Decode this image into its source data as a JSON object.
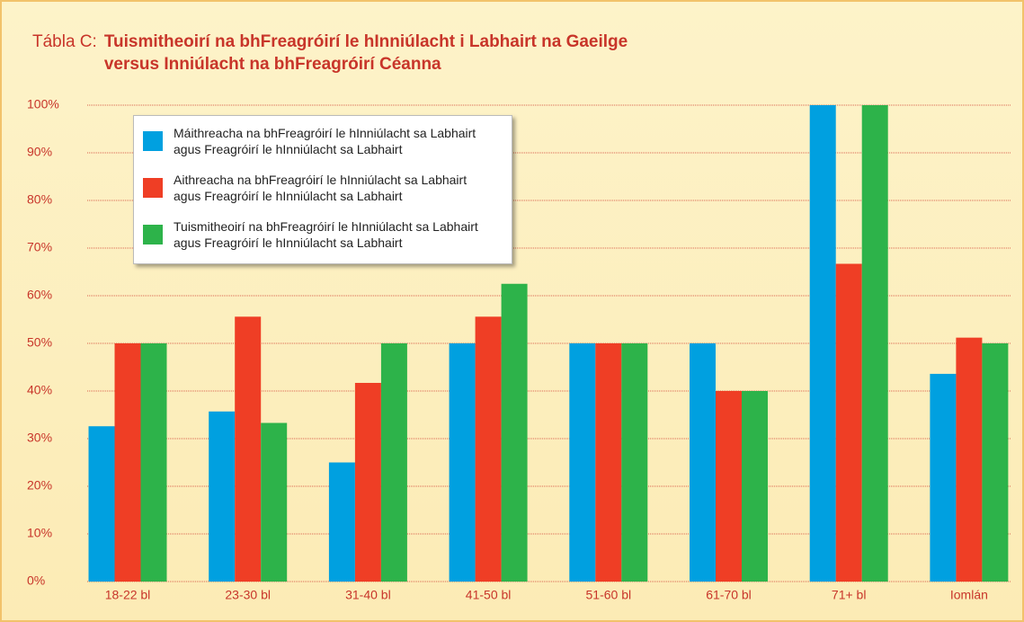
{
  "chart_data": {
    "type": "bar",
    "label": "Tábla C:",
    "title": "Tuismitheoirí na bhFreagróirí le hInniúlacht i Labhairt na Gaeilge\nversus Inniúlacht na bhFreagróirí Céanna",
    "categories": [
      "18-22 bl",
      "23-30 bl",
      "31-40 bl",
      "41-50 bl",
      "51-60 bl",
      "61-70 bl",
      "71+ bl",
      "Iomlán"
    ],
    "series": [
      {
        "name": "Máithreacha na bhFreagróirí le hInniúlacht sa Labhairt\nagus Freagróirí le hInniúlacht sa Labhairt",
        "color": "#00a0e0",
        "values": [
          32.6,
          35.7,
          25,
          50,
          50,
          50,
          100,
          43.6
        ]
      },
      {
        "name": "Aithreacha na bhFreagróirí le hInniúlacht sa Labhairt\nagus Freagróirí le hInniúlacht sa Labhairt",
        "color": "#ef3e25",
        "values": [
          50,
          55.6,
          41.7,
          55.6,
          50,
          40,
          66.7,
          51.2
        ]
      },
      {
        "name": "Tuismitheoirí na bhFreagróirí le hInniúlacht sa Labhairt\nagus Freagróirí le hInniúlacht sa Labhairt",
        "color": "#2db34a",
        "values": [
          50,
          33.3,
          50,
          62.5,
          50,
          40,
          100,
          50
        ]
      }
    ],
    "ylim": [
      0,
      100
    ],
    "yticks": [
      {
        "value": 0,
        "label": "0%"
      },
      {
        "value": 10,
        "label": "10%"
      },
      {
        "value": 20,
        "label": "20%"
      },
      {
        "value": 30,
        "label": "30%"
      },
      {
        "value": 40,
        "label": "40%"
      },
      {
        "value": 50,
        "label": "50%"
      },
      {
        "value": 60,
        "label": "60%"
      },
      {
        "value": 70,
        "label": "70%"
      },
      {
        "value": 80,
        "label": "80%"
      },
      {
        "value": 90,
        "label": "90%"
      },
      {
        "value": 100,
        "label": "100%"
      }
    ],
    "grid": true
  }
}
